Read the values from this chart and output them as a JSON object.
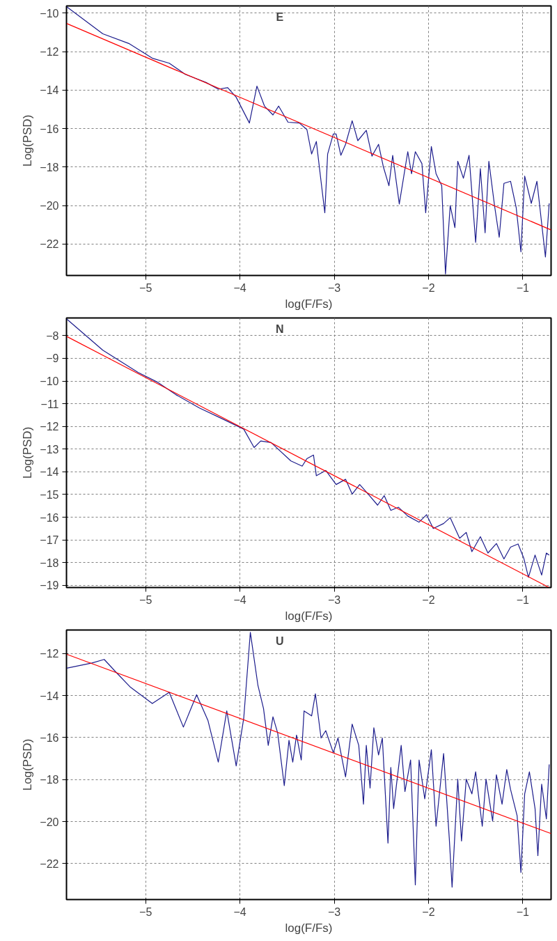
{
  "chart_data": [
    {
      "type": "line",
      "title": "E",
      "xlabel": "log(F/Fs)",
      "ylabel": "Log(PSD)",
      "xlim": [
        -5.84,
        -0.7
      ],
      "ylim": [
        -23.64,
        -9.62
      ],
      "xticks": [
        -5,
        -4,
        -3,
        -2,
        -1
      ],
      "yticks": [
        -22,
        -20,
        -18,
        -16,
        -14,
        -12,
        -10
      ],
      "grid": true,
      "series": [
        {
          "color": "#1c1c8c",
          "x": [
            -5.84,
            -5.455,
            -5.18,
            -4.93,
            -4.75,
            -4.58,
            -4.36,
            -4.23,
            -4.13,
            -4.04,
            -3.9,
            -3.82,
            -3.74,
            -3.65,
            -3.59,
            -3.49,
            -3.37,
            -3.29,
            -3.24,
            -3.19,
            -3.14,
            -3.1,
            -3.07,
            -3.01,
            -2.98,
            -2.93,
            -2.88,
            -2.81,
            -2.75,
            -2.66,
            -2.6,
            -2.53,
            -2.48,
            -2.42,
            -2.38,
            -2.31,
            -2.22,
            -2.18,
            -2.14,
            -2.07,
            -2.03,
            -1.97,
            -1.92,
            -1.86,
            -1.82,
            -1.77,
            -1.72,
            -1.69,
            -1.63,
            -1.57,
            -1.5,
            -1.45,
            -1.4,
            -1.36,
            -1.3,
            -1.25,
            -1.2,
            -1.13,
            -1.07,
            -1.02,
            -0.98,
            -0.91,
            -0.85,
            -0.76,
            -0.72
          ],
          "values": [
            -9.66,
            -11.07,
            -11.57,
            -12.34,
            -12.6,
            -13.18,
            -13.6,
            -13.95,
            -13.87,
            -14.37,
            -15.71,
            -13.79,
            -14.83,
            -15.29,
            -14.83,
            -15.67,
            -15.71,
            -16.05,
            -17.32,
            -16.67,
            -18.74,
            -20.38,
            -17.32,
            -16.28,
            -16.28,
            -17.39,
            -16.82,
            -15.59,
            -16.63,
            -16.09,
            -17.43,
            -16.82,
            -17.97,
            -18.97,
            -17.39,
            -19.92,
            -17.2,
            -18.35,
            -17.2,
            -17.82,
            -20.38,
            -16.93,
            -18.35,
            -18.97,
            -23.56,
            -20.0,
            -21.15,
            -17.7,
            -18.58,
            -17.39,
            -21.92,
            -18.08,
            -21.42,
            -17.7,
            -20.0,
            -21.65,
            -18.85,
            -18.74,
            -20.11,
            -22.41,
            -18.47,
            -19.89,
            -18.74,
            -22.68,
            -19.89
          ]
        },
        {
          "color": "#ff0000",
          "x": [
            -5.84,
            -0.7
          ],
          "values": [
            -10.53,
            -21.27
          ]
        }
      ]
    },
    {
      "type": "line",
      "title": "N",
      "xlabel": "log(F/Fs)",
      "ylabel": "Log(PSD)",
      "xlim": [
        -5.84,
        -0.7
      ],
      "ylim": [
        -19.1,
        -7.22
      ],
      "xticks": [
        -5,
        -4,
        -3,
        -2,
        -1
      ],
      "yticks": [
        -19,
        -18,
        -17,
        -16,
        -15,
        -14,
        -13,
        -12,
        -11,
        -10,
        -9,
        -8
      ],
      "grid": true,
      "series": [
        {
          "color": "#1c1c8c",
          "x": [
            -5.84,
            -5.455,
            -5.08,
            -4.88,
            -4.68,
            -4.43,
            -4.19,
            -3.96,
            -3.85,
            -3.78,
            -3.67,
            -3.46,
            -3.34,
            -3.29,
            -3.22,
            -3.19,
            -3.09,
            -2.98,
            -2.88,
            -2.81,
            -2.73,
            -2.64,
            -2.54,
            -2.47,
            -2.4,
            -2.32,
            -2.22,
            -2.1,
            -2.02,
            -1.95,
            -1.84,
            -1.77,
            -1.67,
            -1.6,
            -1.54,
            -1.45,
            -1.37,
            -1.28,
            -1.2,
            -1.13,
            -1.05,
            -0.99,
            -0.94,
            -0.87,
            -0.8,
            -0.75,
            -0.72
          ],
          "values": [
            -7.26,
            -8.64,
            -9.62,
            -10.04,
            -10.6,
            -11.19,
            -11.66,
            -12.12,
            -12.93,
            -12.64,
            -12.71,
            -13.52,
            -13.75,
            -13.42,
            -13.26,
            -14.17,
            -13.94,
            -14.56,
            -14.33,
            -14.98,
            -14.56,
            -14.98,
            -15.47,
            -15.05,
            -15.7,
            -15.56,
            -15.95,
            -16.22,
            -15.89,
            -16.5,
            -16.28,
            -16.02,
            -16.93,
            -16.67,
            -17.52,
            -16.86,
            -17.58,
            -17.16,
            -17.84,
            -17.32,
            -17.18,
            -17.8,
            -18.65,
            -17.67,
            -18.55,
            -17.58,
            -17.67
          ]
        },
        {
          "color": "#ff0000",
          "x": [
            -5.84,
            -0.72
          ],
          "values": [
            -8.03,
            -19.1
          ]
        }
      ]
    },
    {
      "type": "line",
      "title": "U",
      "xlabel": "log(F/Fs)",
      "ylabel": "Log(PSD)",
      "xlim": [
        -5.84,
        -0.7
      ],
      "ylim": [
        -23.71,
        -10.88
      ],
      "xticks": [
        -5,
        -4,
        -3,
        -2,
        -1
      ],
      "yticks": [
        -22,
        -20,
        -18,
        -16,
        -14,
        -12
      ],
      "grid": true,
      "series": [
        {
          "color": "#1c1c8c",
          "x": [
            -5.84,
            -5.57,
            -5.44,
            -5.31,
            -5.16,
            -4.93,
            -4.75,
            -4.6,
            -4.46,
            -4.34,
            -4.23,
            -4.14,
            -4.04,
            -3.96,
            -3.89,
            -3.81,
            -3.75,
            -3.7,
            -3.65,
            -3.6,
            -3.53,
            -3.48,
            -3.44,
            -3.4,
            -3.35,
            -3.32,
            -3.24,
            -3.2,
            -3.14,
            -3.09,
            -3.01,
            -2.96,
            -2.88,
            -2.81,
            -2.74,
            -2.69,
            -2.66,
            -2.62,
            -2.58,
            -2.53,
            -2.49,
            -2.43,
            -2.4,
            -2.37,
            -2.29,
            -2.25,
            -2.19,
            -2.14,
            -2.1,
            -2.04,
            -1.97,
            -1.92,
            -1.84,
            -1.78,
            -1.75,
            -1.69,
            -1.65,
            -1.6,
            -1.54,
            -1.5,
            -1.43,
            -1.39,
            -1.32,
            -1.28,
            -1.22,
            -1.17,
            -1.13,
            -1.06,
            -1.02,
            -0.98,
            -0.93,
            -0.87,
            -0.84,
            -0.8,
            -0.75,
            -0.72
          ],
          "values": [
            -12.7,
            -12.45,
            -12.28,
            -12.91,
            -13.61,
            -14.38,
            -13.85,
            -15.5,
            -13.96,
            -15.18,
            -17.17,
            -14.73,
            -17.35,
            -15.08,
            -10.99,
            -13.5,
            -14.62,
            -16.37,
            -15.01,
            -15.78,
            -18.29,
            -16.13,
            -17.17,
            -15.88,
            -17.07,
            -14.73,
            -14.97,
            -13.92,
            -16.02,
            -15.67,
            -16.72,
            -16.02,
            -17.87,
            -15.36,
            -16.37,
            -19.17,
            -16.37,
            -18.4,
            -15.53,
            -16.83,
            -16.02,
            -21.02,
            -17.42,
            -19.38,
            -16.37,
            -18.57,
            -17.07,
            -23.01,
            -17.07,
            -18.92,
            -16.58,
            -20.22,
            -16.76,
            -20.78,
            -23.12,
            -17.98,
            -20.92,
            -17.98,
            -18.68,
            -17.63,
            -20.22,
            -17.98,
            -19.97,
            -17.77,
            -19.17,
            -17.52,
            -18.47,
            -19.73,
            -22.42,
            -18.68,
            -17.63,
            -19.38,
            -21.62,
            -18.22,
            -19.87,
            -17.28
          ]
        },
        {
          "color": "#ff0000",
          "x": [
            -5.84,
            -0.7
          ],
          "values": [
            -12.03,
            -20.57
          ]
        }
      ]
    }
  ]
}
